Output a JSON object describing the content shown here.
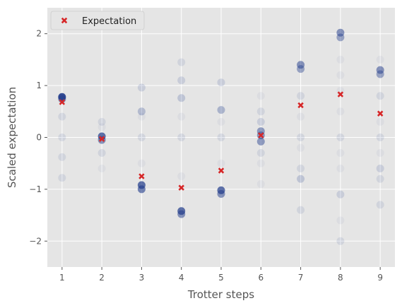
{
  "chart_data": {
    "type": "scatter",
    "xlabel": "Trotter steps",
    "ylabel": "Scaled expectation",
    "xlim": [
      0.63,
      9.37
    ],
    "ylim": [
      -2.5,
      2.5
    ],
    "xticks": [
      1,
      2,
      3,
      4,
      5,
      6,
      7,
      8,
      9
    ],
    "yticks": [
      -2,
      -1,
      0,
      1,
      2
    ],
    "ytick_labels": [
      "−2",
      "−1",
      "0",
      "1",
      "2"
    ],
    "grid": true,
    "legend": {
      "placement": "top-left",
      "entries": [
        "Expectation"
      ]
    },
    "colors": {
      "samples": "#1f3a8a",
      "expectation": "#d62728",
      "background": "#e5e5e5",
      "grid": "#ffffff"
    },
    "series": [
      {
        "name": "Expectation",
        "marker": "x",
        "x": [
          1,
          2,
          3,
          4,
          5,
          6,
          7,
          8,
          9
        ],
        "y": [
          0.68,
          -0.03,
          -0.75,
          -0.97,
          -0.64,
          0.04,
          0.62,
          0.83,
          0.46
        ]
      }
    ],
    "sample_clusters": [
      {
        "x": 1,
        "points": [
          [
            0.78,
            18
          ],
          [
            0.74,
            10
          ],
          [
            0.4,
            2
          ],
          [
            0.0,
            2
          ],
          [
            -0.38,
            2
          ],
          [
            -0.78,
            2
          ]
        ]
      },
      {
        "x": 2,
        "points": [
          [
            0.02,
            14
          ],
          [
            -0.05,
            10
          ],
          [
            0.3,
            2
          ],
          [
            -0.3,
            2
          ],
          [
            0.2,
            1
          ],
          [
            -0.6,
            1
          ]
        ]
      },
      {
        "x": 3,
        "points": [
          [
            -0.92,
            14
          ],
          [
            -1.0,
            12
          ],
          [
            0.5,
            5
          ],
          [
            0.96,
            3
          ],
          [
            0.0,
            2
          ],
          [
            -0.5,
            1
          ],
          [
            0.4,
            1
          ]
        ]
      },
      {
        "x": 4,
        "points": [
          [
            -1.42,
            14
          ],
          [
            -1.48,
            10
          ],
          [
            1.1,
            3
          ],
          [
            0.76,
            4
          ],
          [
            1.45,
            2
          ],
          [
            0.4,
            1
          ],
          [
            0.0,
            2
          ],
          [
            -0.75,
            1
          ]
        ]
      },
      {
        "x": 5,
        "points": [
          [
            -1.02,
            14
          ],
          [
            -1.09,
            10
          ],
          [
            0.53,
            6
          ],
          [
            1.06,
            3
          ],
          [
            0.0,
            2
          ],
          [
            -0.5,
            1
          ],
          [
            0.3,
            1
          ]
        ]
      },
      {
        "x": 6,
        "points": [
          [
            0.12,
            9
          ],
          [
            0.04,
            9
          ],
          [
            -0.08,
            9
          ],
          [
            0.3,
            3
          ],
          [
            0.5,
            2
          ],
          [
            -0.3,
            2
          ],
          [
            0.8,
            1
          ],
          [
            -0.5,
            1
          ],
          [
            -0.9,
            1
          ]
        ]
      },
      {
        "x": 7,
        "points": [
          [
            1.4,
            10
          ],
          [
            1.32,
            8
          ],
          [
            0.8,
            2
          ],
          [
            0.0,
            2
          ],
          [
            -0.6,
            2
          ],
          [
            -0.8,
            4
          ],
          [
            -1.4,
            2
          ],
          [
            -0.2,
            1
          ],
          [
            0.4,
            1
          ]
        ]
      },
      {
        "x": 8,
        "points": [
          [
            2.02,
            10
          ],
          [
            1.93,
            8
          ],
          [
            1.5,
            1
          ],
          [
            1.2,
            1
          ],
          [
            0.9,
            1
          ],
          [
            0.0,
            2
          ],
          [
            -0.3,
            1
          ],
          [
            -1.1,
            3
          ],
          [
            -1.6,
            1
          ],
          [
            -2.0,
            2
          ],
          [
            -0.6,
            1
          ],
          [
            0.5,
            1
          ]
        ]
      },
      {
        "x": 9,
        "points": [
          [
            1.3,
            10
          ],
          [
            1.22,
            8
          ],
          [
            0.8,
            2
          ],
          [
            0.3,
            1
          ],
          [
            0.0,
            2
          ],
          [
            -0.3,
            1
          ],
          [
            -0.6,
            3
          ],
          [
            -0.8,
            2
          ],
          [
            -1.3,
            2
          ],
          [
            1.5,
            1
          ]
        ]
      }
    ]
  }
}
